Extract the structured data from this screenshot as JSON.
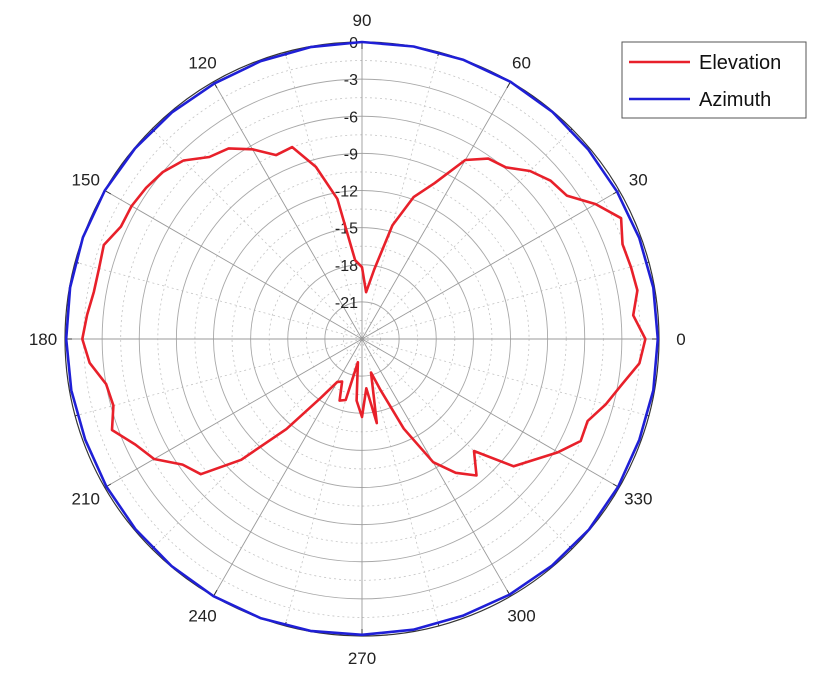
{
  "chart_data": {
    "type": "polar-line",
    "title": "",
    "angle_unit": "degrees",
    "angle_direction": "counter-clockwise",
    "angle_zero": "right",
    "angle_ticks": [
      0,
      30,
      60,
      90,
      120,
      150,
      180,
      210,
      240,
      270,
      300,
      330
    ],
    "angle_tick_labels": [
      "0",
      "30",
      "60",
      "90",
      "120",
      "150",
      "180",
      "210",
      "240",
      "270",
      "300",
      "330"
    ],
    "radial_range": [
      -24,
      0
    ],
    "radial_ticks": [
      0,
      -3,
      -6,
      -9,
      -12,
      -15,
      -18,
      -21
    ],
    "radial_tick_labels": [
      "0",
      "-3",
      "-6",
      "-9",
      "-12",
      "-15",
      "-18",
      "-21"
    ],
    "grid": true,
    "legend_position": "top-right",
    "series": [
      {
        "name": "Elevation",
        "color": "#e8202a",
        "points": [
          [
            0,
            -1.1
          ],
          [
            5,
            -2.0
          ],
          [
            10,
            -1.4
          ],
          [
            15,
            -1.5
          ],
          [
            20,
            -1.6
          ],
          [
            25,
            -0.9
          ],
          [
            30,
            -2.2
          ],
          [
            35,
            -3.8
          ],
          [
            40,
            -4.1
          ],
          [
            45,
            -4.8
          ],
          [
            50,
            -5.9
          ],
          [
            55,
            -6.2
          ],
          [
            60,
            -7.3
          ],
          [
            65,
            -10.1
          ],
          [
            70,
            -11.8
          ],
          [
            75,
            -14.5
          ],
          [
            80,
            -18.3
          ],
          [
            85,
            -20.2
          ],
          [
            90,
            -18.2
          ],
          [
            95,
            -17.6
          ],
          [
            100,
            -12.5
          ],
          [
            105,
            -9.6
          ],
          [
            110,
            -7.5
          ],
          [
            115,
            -7.6
          ],
          [
            120,
            -6.3
          ],
          [
            125,
            -5.2
          ],
          [
            130,
            -4.8
          ],
          [
            135,
            -3.6
          ],
          [
            140,
            -3.0
          ],
          [
            145,
            -2.7
          ],
          [
            150,
            -2.5
          ],
          [
            155,
            -2.5
          ],
          [
            160,
            -1.8
          ],
          [
            165,
            -2.0
          ],
          [
            170,
            -2.0
          ],
          [
            175,
            -1.7
          ],
          [
            180,
            -1.4
          ],
          [
            185,
            -1.9
          ],
          [
            190,
            -3.0
          ],
          [
            195,
            -3.2
          ],
          [
            200,
            -2.5
          ],
          [
            205,
            -3.8
          ],
          [
            210,
            -4.6
          ],
          [
            215,
            -6.3
          ],
          [
            220,
            -7.0
          ],
          [
            225,
            -10.2
          ],
          [
            230,
            -14.5
          ],
          [
            235,
            -18.2
          ],
          [
            240,
            -20.0
          ],
          [
            245,
            -20.2
          ],
          [
            250,
            -18.7
          ],
          [
            255,
            -18.9
          ],
          [
            260,
            -22.1
          ],
          [
            265,
            -19.0
          ],
          [
            270,
            -17.7
          ],
          [
            275,
            -20.0
          ],
          [
            280,
            -17.1
          ],
          [
            285,
            -21.2
          ],
          [
            290,
            -19.6
          ],
          [
            295,
            -16.0
          ],
          [
            300,
            -12.5
          ],
          [
            305,
            -10.8
          ],
          [
            310,
            -9.6
          ],
          [
            315,
            -11.2
          ],
          [
            320,
            -8.0
          ],
          [
            325,
            -7.0
          ],
          [
            330,
            -5.7
          ],
          [
            335,
            -4.5
          ],
          [
            340,
            -4.6
          ],
          [
            345,
            -3.6
          ],
          [
            350,
            -2.7
          ],
          [
            355,
            -1.5
          ]
        ]
      },
      {
        "name": "Azimuth",
        "color": "#1f1fd6",
        "points": [
          [
            0,
            -0.1
          ],
          [
            10,
            -0.1
          ],
          [
            20,
            -0.15
          ],
          [
            30,
            -0.2
          ],
          [
            40,
            -0.15
          ],
          [
            50,
            -0.05
          ],
          [
            60,
            0.0
          ],
          [
            70,
            0.0
          ],
          [
            80,
            0.0
          ],
          [
            90,
            0.0
          ],
          [
            100,
            -0.05
          ],
          [
            110,
            -0.1
          ],
          [
            120,
            -0.15
          ],
          [
            130,
            -0.1
          ],
          [
            140,
            -0.05
          ],
          [
            150,
            0.0
          ],
          [
            160,
            0.0
          ],
          [
            170,
            -0.05
          ],
          [
            180,
            -0.1
          ],
          [
            190,
            -0.15
          ],
          [
            200,
            -0.2
          ],
          [
            210,
            -0.15
          ],
          [
            220,
            -0.1
          ],
          [
            230,
            -0.05
          ],
          [
            240,
            0.0
          ],
          [
            250,
            0.0
          ],
          [
            260,
            -0.05
          ],
          [
            270,
            -0.1
          ],
          [
            280,
            -0.15
          ],
          [
            290,
            -0.2
          ],
          [
            300,
            -0.15
          ],
          [
            310,
            -0.1
          ],
          [
            320,
            -0.05
          ],
          [
            330,
            -0.1
          ],
          [
            340,
            -0.15
          ],
          [
            350,
            -0.1
          ]
        ]
      }
    ]
  }
}
